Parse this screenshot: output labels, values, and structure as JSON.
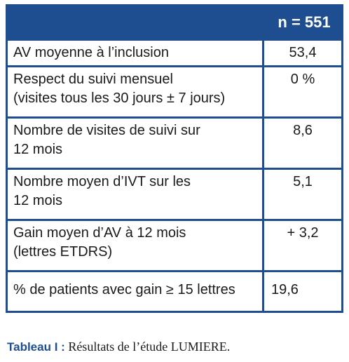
{
  "table": {
    "header_value": "n = 551",
    "rows": [
      {
        "label": "AV moyenne à l’inclusion",
        "value": "53,4"
      },
      {
        "label_line1": "Respect du suivi mensuel",
        "label_line2": "(visites tous les 30 jours ± 7 jours)",
        "value": "0 %"
      },
      {
        "label_line1": "Nombre de visites de suivi sur",
        "label_line2": "12 mois",
        "value": "8,6"
      },
      {
        "label_line1": "Nombre moyen d’IVT sur les",
        "label_line2": "12 mois",
        "value": "5,1"
      },
      {
        "label_line1": "Gain moyen d’AV à 12 mois",
        "label_line2": "(lettres ETDRS)",
        "value": "+ 3,2"
      },
      {
        "label": "% de patients avec gain ≥ 15 lettres",
        "value": "19,6"
      }
    ]
  },
  "caption": {
    "tag": "Tableau I :",
    "text": " Résultats de l’étude LUMIERE."
  },
  "colors": {
    "header_bg": "#1e4e8f",
    "header_text": "#ffffff",
    "caption_tag": "#1e4e8f"
  }
}
